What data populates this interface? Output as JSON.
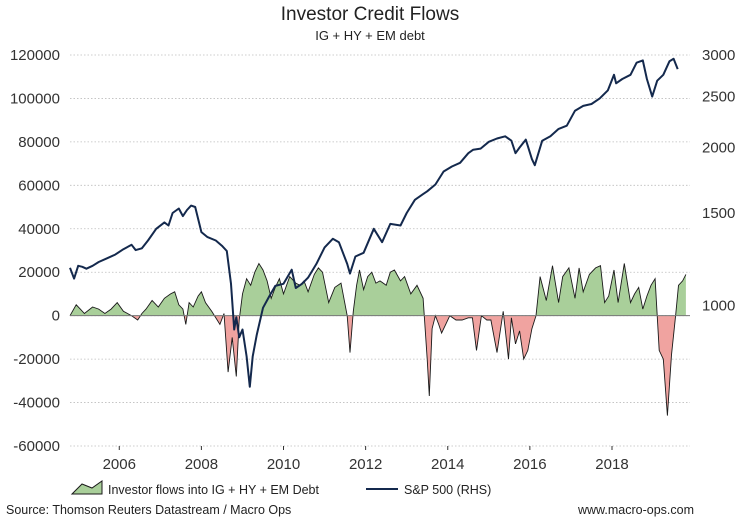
{
  "chart_data": {
    "type": "area",
    "title": "Investor Credit Flows",
    "subtitle": "IG + HY + EM debt",
    "left_axis": {
      "ylim": [
        -60000,
        120000
      ],
      "ticks": [
        120000,
        100000,
        80000,
        60000,
        40000,
        20000,
        0,
        -20000,
        -40000,
        -60000
      ],
      "tick_labels": [
        "120000",
        "100000",
        "80000",
        "60000",
        "40000",
        "20000",
        "0",
        "-20000",
        "-40000",
        "-60000"
      ]
    },
    "right_axis": {
      "scale": "log",
      "ylim": [
        540,
        3000
      ],
      "ticks": [
        3000,
        2500,
        2000,
        1500,
        1000
      ],
      "tick_labels": [
        "3000",
        "2500",
        "2000",
        "1500",
        "1000"
      ]
    },
    "x_axis": {
      "xlim": [
        2004.8,
        2019.9
      ],
      "ticks": [
        2006,
        2008,
        2010,
        2012,
        2014,
        2016,
        2018
      ],
      "tick_labels": [
        "2006",
        "2008",
        "2010",
        "2012",
        "2014",
        "2016",
        "2018"
      ]
    },
    "grid": true,
    "legend": "bottom",
    "series": [
      {
        "name": "Investor flows into IG + HY + EM Debt",
        "axis": "left",
        "style": "area",
        "positive_color": "#a9cf9a",
        "negative_color": "#f0a3a0",
        "line_color": "#1a1a1a",
        "x": [
          2004.8,
          2004.95,
          2005.05,
          2005.15,
          2005.35,
          2005.5,
          2005.65,
          2005.8,
          2005.95,
          2006.1,
          2006.3,
          2006.45,
          2006.55,
          2006.65,
          2006.8,
          2006.95,
          2007.1,
          2007.25,
          2007.35,
          2007.45,
          2007.55,
          2007.62,
          2007.7,
          2007.8,
          2007.92,
          2008.0,
          2008.1,
          2008.25,
          2008.45,
          2008.55,
          2008.65,
          2008.75,
          2008.85,
          2008.92,
          2009.0,
          2009.1,
          2009.2,
          2009.3,
          2009.4,
          2009.5,
          2009.6,
          2009.7,
          2009.8,
          2009.9,
          2010.0,
          2010.15,
          2010.3,
          2010.4,
          2010.5,
          2010.6,
          2010.75,
          2010.85,
          2010.95,
          2011.1,
          2011.25,
          2011.4,
          2011.55,
          2011.62,
          2011.7,
          2011.78,
          2011.85,
          2011.95,
          2012.05,
          2012.15,
          2012.25,
          2012.35,
          2012.5,
          2012.6,
          2012.7,
          2012.85,
          2012.95,
          2013.1,
          2013.25,
          2013.4,
          2013.5,
          2013.55,
          2013.62,
          2013.7,
          2013.78,
          2013.85,
          2013.95,
          2014.05,
          2014.2,
          2014.35,
          2014.5,
          2014.6,
          2014.7,
          2014.82,
          2014.95,
          2015.05,
          2015.2,
          2015.35,
          2015.48,
          2015.55,
          2015.65,
          2015.75,
          2015.85,
          2015.95,
          2016.05,
          2016.15,
          2016.25,
          2016.4,
          2016.55,
          2016.7,
          2016.8,
          2016.95,
          2017.1,
          2017.2,
          2017.3,
          2017.45,
          2017.6,
          2017.72,
          2017.82,
          2017.92,
          2018.05,
          2018.15,
          2018.3,
          2018.45,
          2018.55,
          2018.65,
          2018.75,
          2018.85,
          2018.95,
          2019.05,
          2019.15,
          2019.25,
          2019.35,
          2019.45
        ],
        "y": [
          0,
          5000,
          3000,
          1000,
          4000,
          3000,
          1000,
          3000,
          6000,
          2000,
          0,
          -2000,
          1000,
          3000,
          7000,
          4000,
          8000,
          10000,
          11000,
          5000,
          3000,
          -4000,
          6000,
          4000,
          9000,
          11000,
          6000,
          2000,
          -4000,
          1000,
          -26000,
          -10000,
          -28000,
          -2000,
          10000,
          17000,
          14000,
          20000,
          24000,
          21000,
          16000,
          8000,
          13000,
          17000,
          10000,
          18000,
          15000,
          14000,
          16000,
          11000,
          19000,
          22000,
          20000,
          6000,
          13000,
          15000,
          0,
          -17000,
          2000,
          14000,
          21000,
          12000,
          18000,
          20000,
          15000,
          16000,
          14000,
          20000,
          21000,
          16000,
          18000,
          10000,
          14000,
          8000,
          -20000,
          -37000,
          -6000,
          0,
          -4000,
          -8000,
          -4000,
          0,
          -2000,
          -2000,
          -1000,
          -1000,
          -16000,
          0,
          -2000,
          -2000,
          -17000,
          2000,
          -20000,
          -1000,
          -13000,
          -7000,
          -20000,
          -16000,
          -6000,
          0,
          18000,
          7000,
          23000,
          6000,
          18000,
          22000,
          8000,
          22000,
          11000,
          19000,
          22000,
          23000,
          6000,
          9000,
          21000,
          6000,
          24000,
          6000,
          10000,
          13000,
          3000,
          9000,
          14000,
          17000,
          -16000,
          -20000,
          -46000,
          -18000
        ],
        "x_extra": [
          2019.55,
          2019.62,
          2019.72,
          2019.8
        ],
        "y_extra": [
          0,
          14000,
          16000,
          19000
        ]
      },
      {
        "name": "S&P 500 (RHS)",
        "axis": "right",
        "style": "line",
        "color": "#14294d",
        "x": [
          2004.8,
          2004.9,
          2005.0,
          2005.1,
          2005.2,
          2005.35,
          2005.5,
          2005.7,
          2005.9,
          2006.1,
          2006.3,
          2006.4,
          2006.55,
          2006.7,
          2006.9,
          2007.1,
          2007.2,
          2007.3,
          2007.45,
          2007.55,
          2007.65,
          2007.75,
          2007.85,
          2008.0,
          2008.15,
          2008.35,
          2008.5,
          2008.62,
          2008.72,
          2008.8,
          2008.85,
          2008.92,
          2009.0,
          2009.1,
          2009.18,
          2009.25,
          2009.35,
          2009.5,
          2009.65,
          2009.8,
          2010.0,
          2010.2,
          2010.3,
          2010.45,
          2010.6,
          2010.8,
          2011.0,
          2011.2,
          2011.35,
          2011.55,
          2011.62,
          2011.75,
          2011.95,
          2012.2,
          2012.4,
          2012.6,
          2012.85,
          2013.0,
          2013.2,
          2013.4,
          2013.5,
          2013.7,
          2013.9,
          2014.1,
          2014.3,
          2014.5,
          2014.62,
          2014.8,
          2015.0,
          2015.2,
          2015.4,
          2015.55,
          2015.65,
          2015.75,
          2015.9,
          2016.05,
          2016.12,
          2016.3,
          2016.5,
          2016.7,
          2016.9,
          2017.1,
          2017.3,
          2017.5,
          2017.7,
          2017.9,
          2018.05,
          2018.1,
          2018.25,
          2018.45,
          2018.6,
          2018.75,
          2018.85,
          2018.98,
          2019.1,
          2019.25,
          2019.4,
          2019.5,
          2019.6
        ],
        "y": [
          1180,
          1125,
          1190,
          1185,
          1175,
          1190,
          1210,
          1230,
          1250,
          1280,
          1305,
          1275,
          1285,
          1330,
          1400,
          1440,
          1420,
          1500,
          1530,
          1480,
          1520,
          1550,
          1540,
          1380,
          1350,
          1330,
          1300,
          1270,
          1100,
          900,
          950,
          870,
          900,
          800,
          700,
          800,
          880,
          990,
          1040,
          1090,
          1100,
          1170,
          1080,
          1100,
          1130,
          1200,
          1290,
          1340,
          1320,
          1200,
          1150,
          1240,
          1260,
          1400,
          1320,
          1430,
          1420,
          1500,
          1590,
          1630,
          1650,
          1700,
          1800,
          1840,
          1870,
          1950,
          1980,
          1990,
          2050,
          2080,
          2100,
          2060,
          1950,
          2000,
          2070,
          1900,
          1850,
          2060,
          2100,
          2170,
          2200,
          2350,
          2400,
          2420,
          2480,
          2570,
          2750,
          2650,
          2700,
          2750,
          2900,
          2930,
          2700,
          2500,
          2680,
          2750,
          2920,
          2950,
          2820
        ]
      }
    ],
    "legend_labels": [
      "Investor flows into IG + HY + EM Debt",
      "S&P 500 (RHS)"
    ],
    "source": "Source: Thomson Reuters Datastream / Macro Ops",
    "website": "www.macro-ops.com"
  }
}
